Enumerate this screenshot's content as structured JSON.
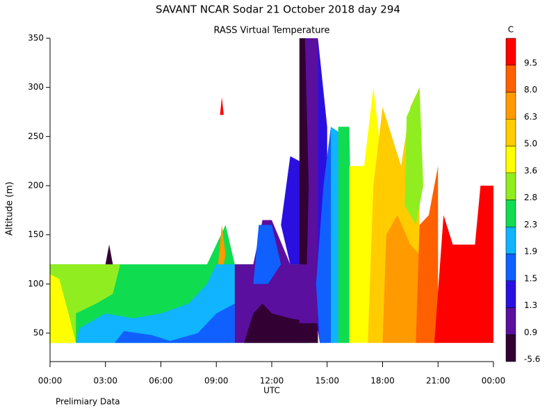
{
  "chart_data": {
    "type": "contour",
    "title": "SAVANT  NCAR Sodar  21 October 2018  day 294",
    "subtitle": "RASS Virtual Temperature",
    "y_label": "Altitude (m)",
    "x_label": "UTC",
    "note": "Prelimiary Data",
    "colorbar_unit": "C",
    "xlim": [
      0,
      24
    ],
    "xticks": [
      {
        "value": 0,
        "label": "00:00"
      },
      {
        "value": 3,
        "label": "03:00"
      },
      {
        "value": 6,
        "label": "06:00"
      },
      {
        "value": 9,
        "label": "09:00"
      },
      {
        "value": 12,
        "label": "12:00"
      },
      {
        "value": 15,
        "label": "15:00"
      },
      {
        "value": 18,
        "label": "18:00"
      },
      {
        "value": 21,
        "label": "21:00"
      },
      {
        "value": 24,
        "label": "00:00"
      }
    ],
    "ylim": [
      21,
      350
    ],
    "yticks": [
      50,
      100,
      150,
      200,
      250,
      300,
      350
    ],
    "colorbar": {
      "levels": [
        -5.6,
        0.9,
        1.3,
        1.5,
        1.9,
        2.3,
        2.8,
        3.6,
        {
          "value": 5,
          "label": "5.0"
        },
        6.3,
        {
          "value": 8,
          "label": "8.0"
        },
        9.5
      ],
      "colors": [
        "#330033",
        "#5a0f9e",
        "#2a10e0",
        "#1060ff",
        "#10b4ff",
        "#10dc50",
        "#90ee20",
        "#ffff00",
        "#ffcc00",
        "#ff9a00",
        "#ff6000",
        "#ff0000"
      ]
    },
    "regions": [
      {
        "level": 5,
        "points": [
          [
            0,
            40
          ],
          [
            0,
            120
          ],
          [
            8.5,
            120
          ],
          [
            9.5,
            160
          ],
          [
            10,
            120
          ],
          [
            14,
            120
          ],
          [
            14,
            40
          ]
        ]
      },
      {
        "level": 6,
        "points": [
          [
            0,
            40
          ],
          [
            0,
            120
          ],
          [
            3.8,
            120
          ],
          [
            3.4,
            90
          ],
          [
            2.5,
            80
          ],
          [
            1.4,
            70
          ],
          [
            1.4,
            40
          ]
        ]
      },
      {
        "level": 7,
        "points": [
          [
            0,
            40
          ],
          [
            0,
            110
          ],
          [
            0.5,
            105
          ],
          [
            1,
            70
          ],
          [
            1.4,
            40
          ]
        ]
      },
      {
        "level": 4,
        "points": [
          [
            1.4,
            40
          ],
          [
            1.6,
            55
          ],
          [
            3,
            70
          ],
          [
            4.5,
            65
          ],
          [
            6,
            70
          ],
          [
            7.5,
            80
          ],
          [
            8.5,
            100
          ],
          [
            9,
            120
          ],
          [
            10,
            120
          ],
          [
            10,
            40
          ]
        ]
      },
      {
        "level": 3,
        "points": [
          [
            3.5,
            40
          ],
          [
            4,
            52
          ],
          [
            5.5,
            48
          ],
          [
            6.5,
            42
          ],
          [
            8,
            50
          ],
          [
            9,
            70
          ],
          [
            10,
            80
          ],
          [
            10,
            40
          ]
        ]
      },
      {
        "level": 1,
        "points": [
          [
            10,
            40
          ],
          [
            10,
            120
          ],
          [
            11,
            120
          ],
          [
            11.5,
            165
          ],
          [
            12,
            165
          ],
          [
            13,
            120
          ],
          [
            14,
            120
          ],
          [
            14.5,
            40
          ]
        ]
      },
      {
        "level": 0,
        "points": [
          [
            10.5,
            40
          ],
          [
            11,
            70
          ],
          [
            11.5,
            80
          ],
          [
            12,
            70
          ],
          [
            13,
            65
          ],
          [
            14.5,
            60
          ],
          [
            14.5,
            40
          ]
        ]
      },
      {
        "level": 2,
        "points": [
          [
            13,
            120
          ],
          [
            12.5,
            160
          ],
          [
            13,
            230
          ],
          [
            14,
            220
          ],
          [
            14.5,
            350
          ],
          [
            15,
            260
          ],
          [
            15,
            40
          ],
          [
            14.6,
            40
          ],
          [
            14.3,
            80
          ],
          [
            14.5,
            120
          ]
        ]
      },
      {
        "level": 1,
        "points": [
          [
            13.5,
            60
          ],
          [
            13.5,
            350
          ],
          [
            14.5,
            350
          ],
          [
            14.5,
            60
          ]
        ]
      },
      {
        "level": 0,
        "points": [
          [
            13.5,
            120
          ],
          [
            13.5,
            350
          ],
          [
            13.8,
            350
          ],
          [
            14,
            200
          ],
          [
            13.9,
            120
          ]
        ]
      },
      {
        "level": 3,
        "points": [
          [
            14.6,
            40
          ],
          [
            14.4,
            100
          ],
          [
            14.8,
            200
          ],
          [
            15.2,
            260
          ],
          [
            15.6,
            40
          ]
        ]
      },
      {
        "level": 3,
        "points": [
          [
            11,
            100
          ],
          [
            11.3,
            160
          ],
          [
            12,
            160
          ],
          [
            12.5,
            120
          ],
          [
            11.8,
            100
          ]
        ]
      },
      {
        "level": 4,
        "points": [
          [
            15.2,
            40
          ],
          [
            15.2,
            260
          ],
          [
            16,
            250
          ],
          [
            16,
            40
          ]
        ]
      },
      {
        "level": 5,
        "points": [
          [
            15.6,
            40
          ],
          [
            15.6,
            260
          ],
          [
            16.2,
            260
          ],
          [
            16.4,
            40
          ]
        ]
      },
      {
        "level": 7,
        "points": [
          [
            16.2,
            40
          ],
          [
            16.2,
            220
          ],
          [
            17,
            220
          ],
          [
            17.5,
            300
          ],
          [
            18,
            220
          ],
          [
            17.8,
            40
          ]
        ]
      },
      {
        "level": 8,
        "points": [
          [
            17.2,
            40
          ],
          [
            17.5,
            200
          ],
          [
            18,
            280
          ],
          [
            18.5,
            250
          ],
          [
            19,
            220
          ],
          [
            19.5,
            280
          ],
          [
            20,
            300
          ],
          [
            20,
            40
          ]
        ]
      },
      {
        "level": 6,
        "points": [
          [
            19.2,
            180
          ],
          [
            19.3,
            270
          ],
          [
            20,
            300
          ],
          [
            20.2,
            200
          ],
          [
            19.8,
            160
          ]
        ]
      },
      {
        "level": 9,
        "points": [
          [
            18,
            40
          ],
          [
            18.2,
            150
          ],
          [
            18.8,
            170
          ],
          [
            19.5,
            140
          ],
          [
            20.5,
            120
          ],
          [
            21,
            40
          ]
        ]
      },
      {
        "level": 10,
        "points": [
          [
            19.8,
            40
          ],
          [
            20,
            160
          ],
          [
            20.5,
            170
          ],
          [
            21,
            220
          ],
          [
            21,
            40
          ]
        ]
      },
      {
        "level": 11,
        "points": [
          [
            20.8,
            40
          ],
          [
            21.3,
            170
          ],
          [
            21.8,
            140
          ],
          [
            23,
            140
          ],
          [
            23.3,
            200
          ],
          [
            24,
            200
          ],
          [
            24,
            40
          ]
        ]
      },
      {
        "level": 11,
        "points": [
          [
            9.2,
            272
          ],
          [
            9.3,
            290
          ],
          [
            9.4,
            272
          ]
        ]
      },
      {
        "level": 9,
        "points": [
          [
            9.1,
            120
          ],
          [
            9.3,
            160
          ],
          [
            9.5,
            130
          ],
          [
            9.4,
            120
          ]
        ]
      },
      {
        "level": 0,
        "points": [
          [
            3,
            120
          ],
          [
            3.2,
            140
          ],
          [
            3.4,
            120
          ]
        ]
      }
    ]
  }
}
